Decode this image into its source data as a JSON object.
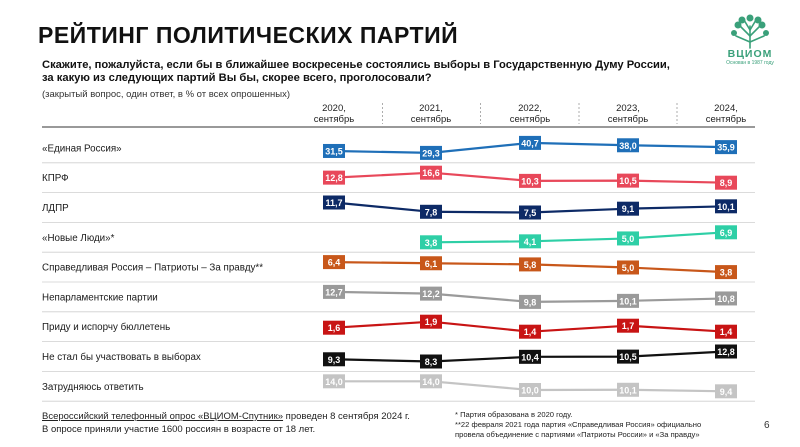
{
  "header": {
    "title": "РЕЙТИНГ ПОЛИТИЧЕСКИХ ПАРТИЙ",
    "question_line1": "Скажите, пожалуйста, если бы в ближайшее воскресенье состоялись выборы в Государственную Думу России,",
    "question_line2": "за какую из следующих партий Вы бы, скорее всего, проголосовали?",
    "note": "(закрытый вопрос, один ответ, в % от всех опрошенных)"
  },
  "logo": {
    "name": "ВЦИОМ",
    "tagline": "Основан в 1987 году",
    "color": "#3aa07a"
  },
  "chart_data": {
    "type": "line",
    "categories": [
      "2020, сентябрь",
      "2021, сентябрь",
      "2022, сентябрь",
      "2023, сентябрь",
      "2024, сентябрь"
    ],
    "series": [
      {
        "name": "«Единая Россия»",
        "color": "#1f6fb8",
        "values": [
          31.5,
          29.3,
          40.7,
          38.0,
          35.9
        ],
        "labels": [
          "31,5",
          "29,3",
          "40,7",
          "38,0",
          "35,9"
        ]
      },
      {
        "name": "КПРФ",
        "color": "#e8485a",
        "values": [
          12.8,
          16.6,
          10.3,
          10.5,
          8.9
        ],
        "labels": [
          "12,8",
          "16,6",
          "10,3",
          "10,5",
          "8,9"
        ]
      },
      {
        "name": "ЛДПР",
        "color": "#0d2a66",
        "values": [
          11.7,
          7.8,
          7.5,
          9.1,
          10.1
        ],
        "labels": [
          "11,7",
          "7,8",
          "7,5",
          "9,1",
          "10,1"
        ]
      },
      {
        "name": "«Новые Люди»*",
        "color": "#2ecfa6",
        "values": [
          null,
          3.8,
          4.1,
          5.0,
          6.9
        ],
        "labels": [
          "",
          "3,8",
          "4,1",
          "5,0",
          "6,9"
        ]
      },
      {
        "name": "Справедливая Россия – Патриоты – За правду**",
        "color": "#c8571a",
        "values": [
          6.4,
          6.1,
          5.8,
          5.0,
          3.8
        ],
        "labels": [
          "6,4",
          "6,1",
          "5,8",
          "5,0",
          "3,8"
        ]
      },
      {
        "name": "Непарламентские партии",
        "color": "#9a9a9a",
        "values": [
          12.7,
          12.2,
          9.8,
          10.1,
          10.8
        ],
        "labels": [
          "12,7",
          "12,2",
          "9,8",
          "10,1",
          "10,8"
        ]
      },
      {
        "name": "Приду и испорчу бюллетень",
        "color": "#c81414",
        "values": [
          1.6,
          1.9,
          1.4,
          1.7,
          1.4
        ],
        "labels": [
          "1,6",
          "1,9",
          "1,4",
          "1,7",
          "1,4"
        ]
      },
      {
        "name": "Не стал бы участвовать в выборах",
        "color": "#111111",
        "values": [
          9.3,
          8.3,
          10.4,
          10.5,
          12.8
        ],
        "labels": [
          "9,3",
          "8,3",
          "10,4",
          "10,5",
          "12,8"
        ]
      },
      {
        "name": "Затрудняюсь ответить",
        "color": "#c4c4c4",
        "values": [
          14.0,
          14.0,
          10.0,
          10.1,
          9.4
        ],
        "labels": [
          "14,0",
          "14,0",
          "10,0",
          "10,1",
          "9,4"
        ]
      }
    ]
  },
  "footer": {
    "survey_link": "Всероссийский телефонный опрос «ВЦИОМ-Спутник»",
    "survey_rest": " проведен 8 сентября 2024 г.",
    "participants": "В опросе приняли участие 1600 россиян в возрасте от 18 лет.",
    "note1": "* Партия образована в 2020 году.",
    "note2": "**22 февраля 2021 года партия «Справедливая Россия» официально",
    "note3": "провела объединение с партиями «Патриоты России» и «За правду»",
    "page_number": "6"
  }
}
